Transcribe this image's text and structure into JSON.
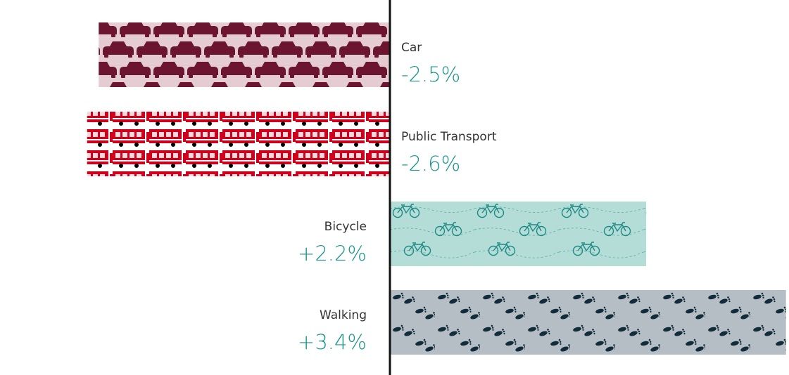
{
  "chart_data": {
    "type": "bar",
    "orientation": "horizontal-diverging",
    "categories": [
      "Car",
      "Public Transport",
      "Bicycle",
      "Walking"
    ],
    "values": [
      -2.5,
      -2.6,
      2.2,
      3.4
    ],
    "value_labels": [
      "-2.5%",
      "-2.6%",
      "+2.2%",
      "+3.4%"
    ],
    "xlim": [
      -2.6,
      3.4
    ],
    "grid": false,
    "legend": "none",
    "title": "",
    "xlabel": "",
    "ylabel": ""
  },
  "colors": {
    "value_text": "#1a958e",
    "axis": "#111111",
    "car_fill": "#6b1530",
    "car_bg": "#e5ccd3",
    "transport_fill": "#d0001d",
    "transport_bg": "#f7d9dc",
    "bicycle_fill": "#1d8a86",
    "bicycle_bg": "#b5ddd8",
    "walking_fill": "#122c3b",
    "walking_bg": "#b5bec4"
  },
  "patterns": {
    "car": "car-icon",
    "public_transport": "tram-icon",
    "bicycle": "bicycle-icon",
    "walking": "footprints-icon"
  }
}
